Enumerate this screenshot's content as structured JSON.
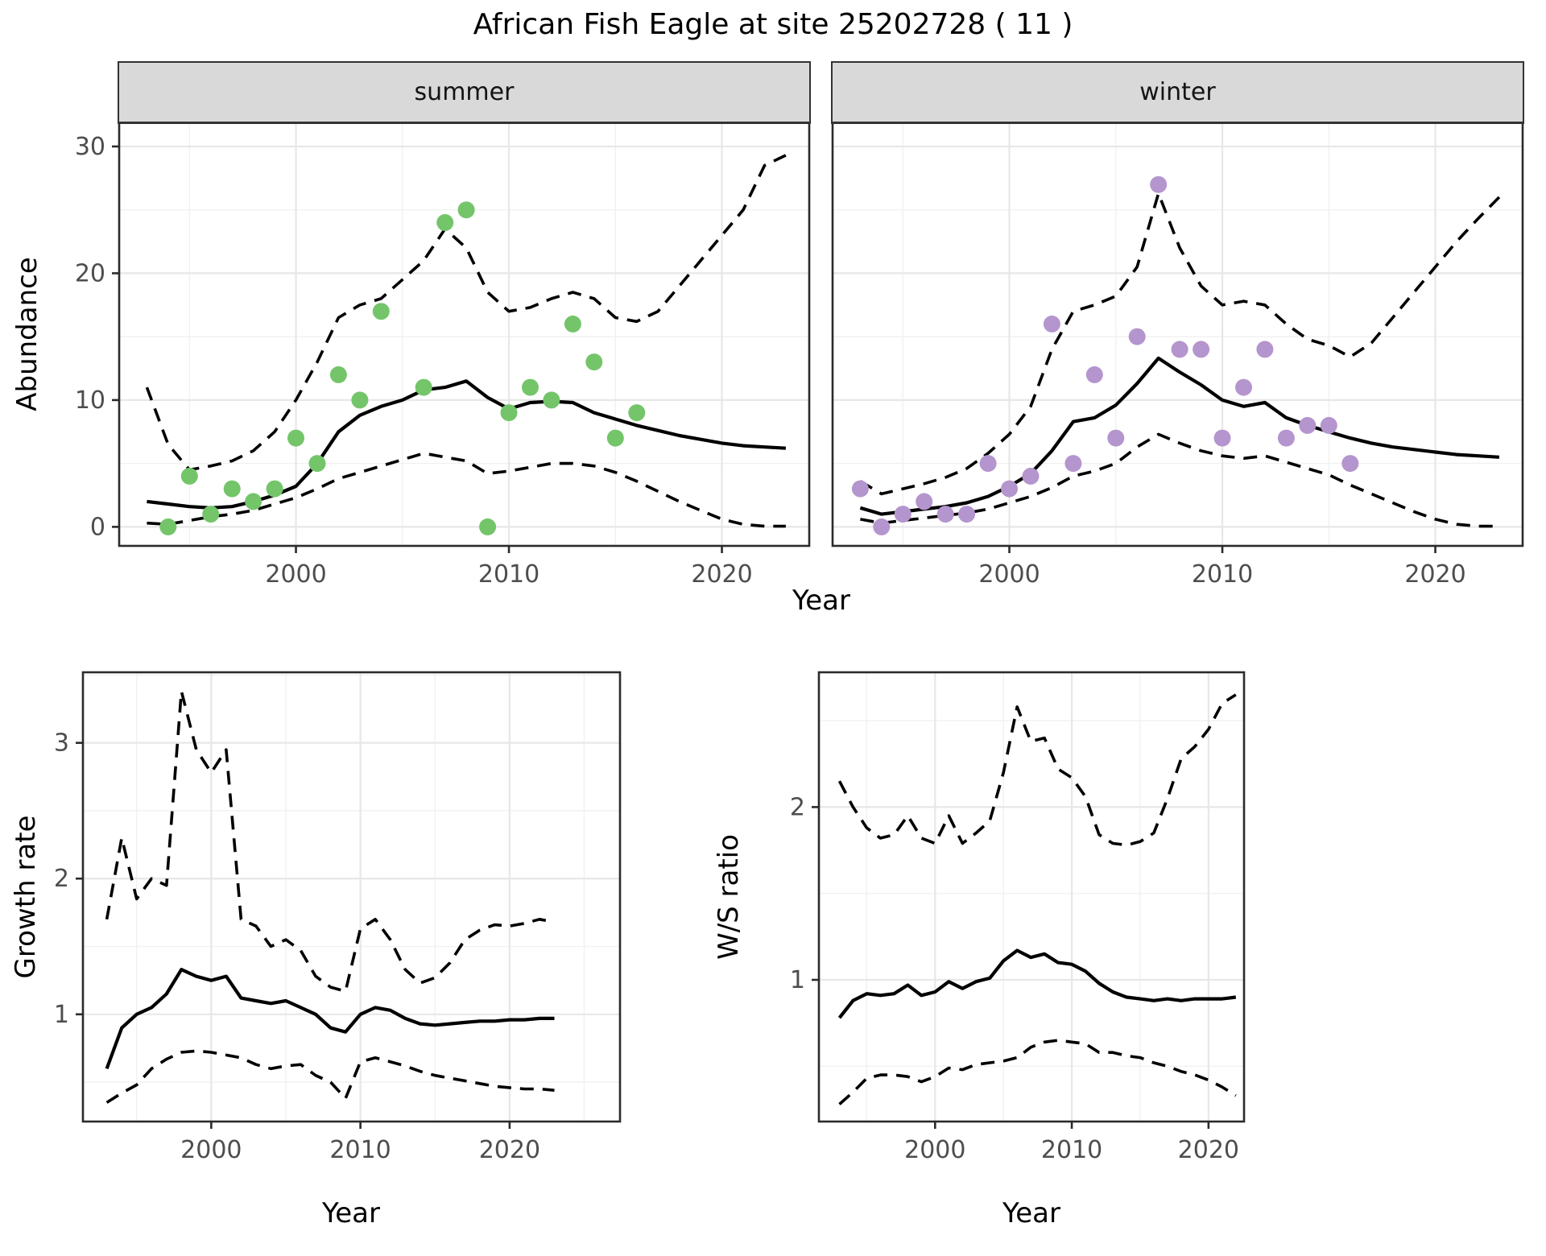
{
  "title": "African Fish Eagle at site 25202728 ( 11 )",
  "labels": {
    "year": "Year",
    "abundance": "Abundance",
    "growth_rate": "Growth rate",
    "ws_ratio": "W/S ratio"
  },
  "colors": {
    "summer_point": "#74C56A",
    "winter_point": "#B495CE",
    "line": "#000000",
    "grid_major": "#E7E7E7",
    "grid_minor": "#F1F1F1",
    "panel_border": "#2B2B2B",
    "strip_bg": "#D9D9D9",
    "axis_text": "#4D4D4D",
    "panel_bg": "#FFFFFF"
  },
  "chart_data": [
    {
      "type": "scatter",
      "facet": "summer",
      "xlabel": "Year",
      "ylabel": "Abundance",
      "xlim": [
        1991.7,
        2024.1
      ],
      "ylim": [
        -1.5,
        31.9
      ],
      "x_ticks": [
        2000,
        2010,
        2020
      ],
      "y_ticks": [
        0,
        10,
        20,
        30
      ],
      "grid": true,
      "legend": "none",
      "points": {
        "years": [
          1994,
          1995,
          1996,
          1997,
          1998,
          1999,
          2000,
          2001,
          2002,
          2003,
          2004,
          2006,
          2007,
          2008,
          2009,
          2010,
          2011,
          2012,
          2013,
          2014,
          2015,
          2016
        ],
        "values": [
          0,
          4,
          1,
          3,
          2,
          3,
          7,
          5,
          12,
          10,
          17,
          11,
          24,
          25,
          0,
          9,
          11,
          10,
          16,
          13,
          7,
          9
        ]
      },
      "series": [
        {
          "name": "fit",
          "style": "solid",
          "years": [
            1993,
            1994,
            1995,
            1996,
            1997,
            1998,
            1999,
            2000,
            2001,
            2002,
            2003,
            2004,
            2005,
            2006,
            2007,
            2008,
            2009,
            2010,
            2011,
            2012,
            2013,
            2014,
            2015,
            2016,
            2017,
            2018,
            2019,
            2020,
            2021,
            2022,
            2023
          ],
          "values": [
            2.0,
            1.8,
            1.6,
            1.5,
            1.6,
            2.0,
            2.5,
            3.2,
            5.0,
            7.5,
            8.8,
            9.5,
            10.0,
            10.8,
            11.0,
            11.5,
            10.2,
            9.3,
            9.8,
            9.9,
            9.8,
            9.0,
            8.5,
            8.0,
            7.6,
            7.2,
            6.9,
            6.6,
            6.4,
            6.3,
            6.2
          ]
        },
        {
          "name": "upper_ci",
          "style": "dashed",
          "years": [
            1993,
            1994,
            1995,
            1996,
            1997,
            1998,
            1999,
            2000,
            2001,
            2002,
            2003,
            2004,
            2005,
            2006,
            2007,
            2008,
            2009,
            2010,
            2011,
            2012,
            2013,
            2014,
            2015,
            2016,
            2017,
            2018,
            2019,
            2020,
            2021,
            2022,
            2023
          ],
          "values": [
            11.0,
            6.5,
            4.5,
            4.8,
            5.2,
            6.0,
            7.5,
            10.0,
            13.0,
            16.5,
            17.5,
            18.0,
            19.5,
            21.0,
            23.5,
            22.0,
            18.5,
            17.0,
            17.3,
            18.0,
            18.5,
            18.0,
            16.5,
            16.2,
            17.0,
            19.0,
            21.0,
            23.0,
            25.0,
            28.5,
            29.3
          ]
        },
        {
          "name": "lower_ci",
          "style": "dashed",
          "years": [
            1993,
            1994,
            1995,
            1996,
            1997,
            1998,
            1999,
            2000,
            2001,
            2002,
            2003,
            2004,
            2005,
            2006,
            2007,
            2008,
            2009,
            2010,
            2011,
            2012,
            2013,
            2014,
            2015,
            2016,
            2017,
            2018,
            2019,
            2020,
            2021,
            2022,
            2023
          ],
          "values": [
            0.3,
            0.2,
            0.5,
            0.8,
            1.0,
            1.3,
            1.8,
            2.3,
            3.0,
            3.8,
            4.3,
            4.8,
            5.3,
            5.8,
            5.5,
            5.2,
            4.2,
            4.4,
            4.7,
            5.0,
            5.0,
            4.8,
            4.3,
            3.6,
            2.8,
            2.0,
            1.3,
            0.6,
            0.2,
            0.05,
            0.05
          ]
        }
      ]
    },
    {
      "type": "scatter",
      "facet": "winter",
      "xlabel": "Year",
      "ylabel": "Abundance",
      "xlim": [
        1991.7,
        2024.1
      ],
      "ylim": [
        -1.5,
        31.9
      ],
      "x_ticks": [
        2000,
        2010,
        2020
      ],
      "y_ticks": [
        0,
        10,
        20,
        30
      ],
      "grid": true,
      "legend": "none",
      "points": {
        "years": [
          1993,
          1994,
          1995,
          1996,
          1997,
          1998,
          1999,
          2000,
          2001,
          2002,
          2003,
          2004,
          2005,
          2006,
          2007,
          2008,
          2009,
          2010,
          2011,
          2012,
          2013,
          2014,
          2015,
          2016
        ],
        "values": [
          3,
          0,
          1,
          2,
          1,
          1,
          5,
          3,
          4,
          16,
          5,
          12,
          7,
          15,
          27,
          14,
          14,
          7,
          11,
          14,
          7,
          8,
          8,
          5
        ]
      },
      "series": [
        {
          "name": "fit",
          "style": "solid",
          "years": [
            1993,
            1994,
            1995,
            1996,
            1997,
            1998,
            1999,
            2000,
            2001,
            2002,
            2003,
            2004,
            2005,
            2006,
            2007,
            2008,
            2009,
            2010,
            2011,
            2012,
            2013,
            2014,
            2015,
            2016,
            2017,
            2018,
            2019,
            2020,
            2021,
            2022,
            2023
          ],
          "values": [
            1.5,
            1.0,
            1.2,
            1.4,
            1.6,
            1.9,
            2.4,
            3.2,
            4.2,
            6.0,
            8.3,
            8.6,
            9.6,
            11.3,
            13.3,
            12.2,
            11.2,
            10.0,
            9.5,
            9.8,
            8.6,
            8.0,
            7.5,
            7.0,
            6.6,
            6.3,
            6.1,
            5.9,
            5.7,
            5.6,
            5.5
          ]
        },
        {
          "name": "upper_ci",
          "style": "dashed",
          "years": [
            1993,
            1994,
            1995,
            1996,
            1997,
            1998,
            1999,
            2000,
            2001,
            2002,
            2003,
            2004,
            2005,
            2006,
            2007,
            2008,
            2009,
            2010,
            2011,
            2012,
            2013,
            2014,
            2015,
            2016,
            2017,
            2018,
            2019,
            2020,
            2021,
            2022,
            2023
          ],
          "values": [
            3.6,
            2.6,
            3.0,
            3.4,
            3.9,
            4.6,
            5.8,
            7.3,
            9.5,
            14.0,
            17.0,
            17.5,
            18.2,
            20.5,
            26.3,
            22.0,
            19.0,
            17.5,
            17.8,
            17.5,
            16.0,
            14.8,
            14.3,
            13.4,
            14.5,
            16.5,
            18.5,
            20.5,
            22.5,
            24.3,
            26.0
          ]
        },
        {
          "name": "lower_ci",
          "style": "dashed",
          "years": [
            1993,
            1994,
            1995,
            1996,
            1997,
            1998,
            1999,
            2000,
            2001,
            2002,
            2003,
            2004,
            2005,
            2006,
            2007,
            2008,
            2009,
            2010,
            2011,
            2012,
            2013,
            2014,
            2015,
            2016,
            2017,
            2018,
            2019,
            2020,
            2021,
            2022,
            2023
          ],
          "values": [
            0.6,
            0.3,
            0.5,
            0.7,
            0.9,
            1.1,
            1.4,
            1.9,
            2.4,
            3.1,
            4.0,
            4.4,
            5.0,
            6.3,
            7.3,
            6.6,
            6.0,
            5.6,
            5.4,
            5.6,
            5.1,
            4.6,
            4.1,
            3.3,
            2.6,
            1.9,
            1.2,
            0.6,
            0.2,
            0.05,
            0.05
          ]
        }
      ]
    },
    {
      "type": "line",
      "facet": "",
      "xlabel": "Year",
      "ylabel": "Growth rate",
      "xlim": [
        1991.4,
        2027.4
      ],
      "ylim": [
        0.21,
        3.52
      ],
      "x_ticks": [
        2000,
        2010,
        2020
      ],
      "y_ticks": [
        1,
        2,
        3
      ],
      "grid": true,
      "legend": "none",
      "series": [
        {
          "name": "fit",
          "style": "solid",
          "years": [
            1993,
            1994,
            1995,
            1996,
            1997,
            1998,
            1999,
            2000,
            2001,
            2002,
            2003,
            2004,
            2005,
            2006,
            2007,
            2008,
            2009,
            2010,
            2011,
            2012,
            2013,
            2014,
            2015,
            2016,
            2017,
            2018,
            2019,
            2020,
            2021,
            2022,
            2023
          ],
          "values": [
            0.6,
            0.9,
            1.0,
            1.05,
            1.15,
            1.33,
            1.28,
            1.25,
            1.28,
            1.12,
            1.1,
            1.08,
            1.1,
            1.05,
            1.0,
            0.9,
            0.87,
            1.0,
            1.05,
            1.03,
            0.97,
            0.93,
            0.92,
            0.93,
            0.94,
            0.95,
            0.95,
            0.96,
            0.96,
            0.97,
            0.97
          ]
        },
        {
          "name": "upper_ci",
          "style": "dashed",
          "years": [
            1993,
            1994,
            1995,
            1996,
            1997,
            1998,
            1999,
            2000,
            2001,
            2002,
            2003,
            2004,
            2005,
            2006,
            2007,
            2008,
            2009,
            2010,
            2011,
            2012,
            2013,
            2014,
            2015,
            2016,
            2017,
            2018,
            2019,
            2020,
            2021,
            2022,
            2023
          ],
          "values": [
            1.7,
            2.3,
            1.85,
            2.0,
            1.95,
            3.38,
            2.95,
            2.78,
            2.95,
            1.7,
            1.65,
            1.5,
            1.55,
            1.47,
            1.28,
            1.2,
            1.17,
            1.63,
            1.7,
            1.55,
            1.33,
            1.23,
            1.27,
            1.38,
            1.55,
            1.62,
            1.66,
            1.65,
            1.67,
            1.7,
            1.68
          ]
        },
        {
          "name": "lower_ci",
          "style": "dashed",
          "years": [
            1993,
            1994,
            1995,
            1996,
            1997,
            1998,
            1999,
            2000,
            2001,
            2002,
            2003,
            2004,
            2005,
            2006,
            2007,
            2008,
            2009,
            2010,
            2011,
            2012,
            2013,
            2014,
            2015,
            2016,
            2017,
            2018,
            2019,
            2020,
            2021,
            2022,
            2023
          ],
          "values": [
            0.35,
            0.42,
            0.48,
            0.6,
            0.67,
            0.72,
            0.73,
            0.72,
            0.7,
            0.68,
            0.63,
            0.6,
            0.62,
            0.63,
            0.55,
            0.5,
            0.38,
            0.65,
            0.68,
            0.65,
            0.62,
            0.58,
            0.55,
            0.53,
            0.51,
            0.49,
            0.47,
            0.46,
            0.45,
            0.45,
            0.44
          ]
        }
      ]
    },
    {
      "type": "line",
      "facet": "",
      "xlabel": "Year",
      "ylabel": "W/S ratio",
      "xlim": [
        1991.5,
        2022.6
      ],
      "ylim": [
        0.18,
        2.78
      ],
      "x_ticks": [
        2000,
        2010,
        2020
      ],
      "y_ticks": [
        1,
        2
      ],
      "grid": true,
      "legend": "none",
      "series": [
        {
          "name": "fit",
          "style": "solid",
          "years": [
            1993,
            1994,
            1995,
            1996,
            1997,
            1998,
            1999,
            2000,
            2001,
            2002,
            2003,
            2004,
            2005,
            2006,
            2007,
            2008,
            2009,
            2010,
            2011,
            2012,
            2013,
            2014,
            2015,
            2016,
            2017,
            2018,
            2019,
            2020,
            2021,
            2022
          ],
          "values": [
            0.78,
            0.88,
            0.92,
            0.91,
            0.92,
            0.97,
            0.91,
            0.93,
            0.99,
            0.95,
            0.99,
            1.01,
            1.11,
            1.17,
            1.13,
            1.15,
            1.1,
            1.09,
            1.05,
            0.98,
            0.93,
            0.9,
            0.89,
            0.88,
            0.89,
            0.88,
            0.89,
            0.89,
            0.89,
            0.9
          ]
        },
        {
          "name": "upper_ci",
          "style": "dashed",
          "years": [
            1993,
            1994,
            1995,
            1996,
            1997,
            1998,
            1999,
            2000,
            2001,
            2002,
            2003,
            2004,
            2005,
            2006,
            2007,
            2008,
            2009,
            2010,
            2011,
            2012,
            2013,
            2014,
            2015,
            2016,
            2017,
            2018,
            2019,
            2020,
            2021,
            2022
          ],
          "values": [
            2.15,
            2.0,
            1.88,
            1.82,
            1.84,
            1.95,
            1.82,
            1.79,
            1.95,
            1.79,
            1.85,
            1.92,
            2.2,
            2.58,
            2.38,
            2.4,
            2.22,
            2.17,
            2.06,
            1.84,
            1.79,
            1.78,
            1.8,
            1.85,
            2.05,
            2.28,
            2.35,
            2.45,
            2.6,
            2.65
          ]
        },
        {
          "name": "lower_ci",
          "style": "dashed",
          "years": [
            1993,
            1994,
            1995,
            1996,
            1997,
            1998,
            1999,
            2000,
            2001,
            2002,
            2003,
            2004,
            2005,
            2006,
            2007,
            2008,
            2009,
            2010,
            2011,
            2012,
            2013,
            2014,
            2015,
            2016,
            2017,
            2018,
            2019,
            2020,
            2021,
            2022
          ],
          "values": [
            0.28,
            0.35,
            0.43,
            0.45,
            0.45,
            0.44,
            0.41,
            0.44,
            0.49,
            0.48,
            0.51,
            0.52,
            0.53,
            0.55,
            0.61,
            0.64,
            0.65,
            0.64,
            0.63,
            0.58,
            0.58,
            0.56,
            0.55,
            0.52,
            0.5,
            0.47,
            0.45,
            0.42,
            0.38,
            0.33
          ]
        }
      ]
    }
  ]
}
